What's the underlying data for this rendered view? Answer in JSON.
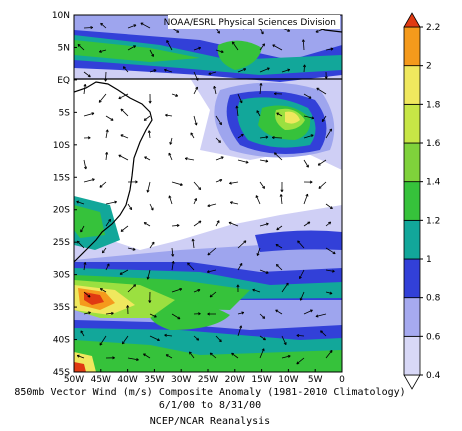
{
  "map": {
    "attribution": "NOAA/ESRL Physical Sciences Division",
    "lat_labels": [
      "10N",
      "5N",
      "EQ",
      "5S",
      "10S",
      "15S",
      "20S",
      "25S",
      "30S",
      "35S",
      "40S",
      "45S"
    ],
    "lon_labels": [
      "50W",
      "45W",
      "40W",
      "35W",
      "30W",
      "25W",
      "20W",
      "15W",
      "10W",
      "5W",
      "0"
    ],
    "colors": {
      "white": "#ffffff",
      "lavender": "#cfcff5",
      "lightblue": "#9ea5ee",
      "blue": "#3240d8",
      "teal": "#12a79a",
      "green": "#36c23b",
      "lime": "#9be040",
      "yellow": "#f0e85e",
      "orange": "#f59a1c",
      "red": "#e03a12"
    }
  },
  "colorbar": {
    "ticks": [
      "0.4",
      "0.6",
      "0.8",
      "1",
      "1.2",
      "1.4",
      "1.6",
      "1.8",
      "2",
      "2.2"
    ],
    "colors": [
      "#ffffff",
      "#d8d8f7",
      "#a6aaf0",
      "#3240d8",
      "#12a79a",
      "#36c23b",
      "#7fd23b",
      "#c7e646",
      "#f0e85e",
      "#f59a1c",
      "#e03a12"
    ]
  },
  "caption": {
    "line1": "850mb Vector Wind (m/s) Composite Anomaly (1981-2010 Climatology)",
    "line2": "6/1/00 to 8/31/00",
    "line3": "NCEP/NCAR Reanalysis"
  }
}
